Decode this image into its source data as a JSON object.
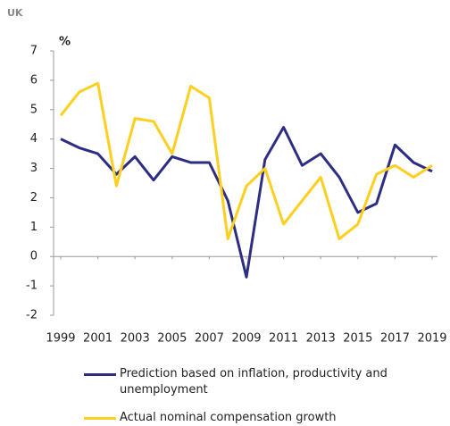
{
  "chart_data": {
    "type": "line",
    "title": "UK",
    "ylabel": "%",
    "x": [
      1999,
      2000,
      2001,
      2002,
      2003,
      2004,
      2005,
      2006,
      2007,
      2008,
      2009,
      2010,
      2011,
      2012,
      2013,
      2014,
      2015,
      2016,
      2017,
      2018,
      2019
    ],
    "xlim": [
      1999,
      2019
    ],
    "xticks": [
      1999,
      2001,
      2003,
      2005,
      2007,
      2009,
      2011,
      2013,
      2015,
      2017,
      2019
    ],
    "ylim": [
      -2,
      7
    ],
    "yticks": [
      -2,
      -1,
      0,
      1,
      2,
      3,
      4,
      5,
      6,
      7
    ],
    "grid": false,
    "series": [
      {
        "name": "Prediction based on inflation, productivity and unemployment",
        "color": "#2d2e83",
        "values": [
          4.0,
          3.7,
          3.5,
          2.8,
          3.4,
          2.6,
          3.4,
          3.2,
          3.2,
          1.9,
          -0.7,
          3.3,
          4.4,
          3.1,
          3.5,
          2.7,
          1.5,
          1.8,
          3.8,
          3.2,
          2.9
        ]
      },
      {
        "name": "Actual nominal compensation growth",
        "color": "#ffcf1f",
        "values": [
          4.8,
          5.6,
          5.9,
          2.4,
          4.7,
          4.6,
          3.5,
          5.8,
          5.4,
          0.6,
          2.4,
          3.0,
          1.1,
          1.9,
          2.7,
          0.6,
          1.1,
          2.8,
          3.1,
          2.7,
          3.1
        ]
      }
    ]
  }
}
